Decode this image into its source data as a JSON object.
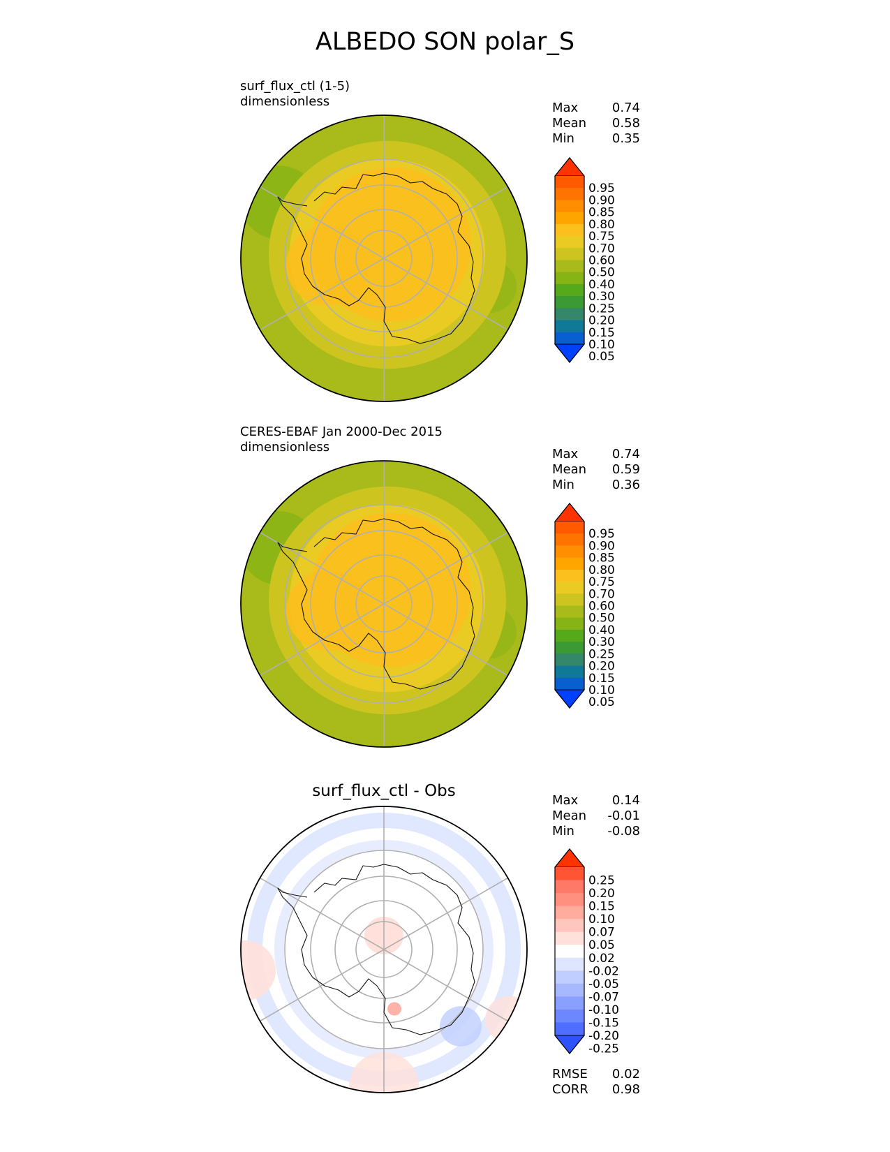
{
  "figure": {
    "title": "ALBEDO SON polar_S"
  },
  "chart_data": [
    {
      "type": "heatmap",
      "projection": "south-polar-stereographic",
      "title": "surf_flux_ctl (1-5)",
      "units": "dimensionless",
      "stats": [
        {
          "label": "Max",
          "value": "0.74"
        },
        {
          "label": "Mean",
          "value": "0.58"
        },
        {
          "label": "Min",
          "value": "0.35"
        }
      ],
      "colorbar": {
        "ticks": [
          "0.95",
          "0.90",
          "0.85",
          "0.80",
          "0.75",
          "0.70",
          "0.60",
          "0.50",
          "0.40",
          "0.30",
          "0.25",
          "0.20",
          "0.15",
          "0.10",
          "0.05"
        ],
        "colors": [
          "#ff3300",
          "#ff5a00",
          "#ff7400",
          "#ff8e00",
          "#ffa500",
          "#fbbf1e",
          "#e9cb24",
          "#cdc41f",
          "#a8bb1a",
          "#86b316",
          "#56a91a",
          "#3c9a35",
          "#34876a",
          "#107998",
          "#0a5fd0",
          "#0040ff"
        ],
        "extend": "both"
      }
    },
    {
      "type": "heatmap",
      "projection": "south-polar-stereographic",
      "title": "CERES-EBAF Jan 2000-Dec 2015",
      "units": "dimensionless",
      "stats": [
        {
          "label": "Max",
          "value": "0.74"
        },
        {
          "label": "Mean",
          "value": "0.59"
        },
        {
          "label": "Min",
          "value": "0.36"
        }
      ],
      "colorbar": {
        "ticks": [
          "0.95",
          "0.90",
          "0.85",
          "0.80",
          "0.75",
          "0.70",
          "0.60",
          "0.50",
          "0.40",
          "0.30",
          "0.25",
          "0.20",
          "0.15",
          "0.10",
          "0.05"
        ],
        "colors": [
          "#ff3300",
          "#ff5a00",
          "#ff7400",
          "#ff8e00",
          "#ffa500",
          "#fbbf1e",
          "#e9cb24",
          "#cdc41f",
          "#a8bb1a",
          "#86b316",
          "#56a91a",
          "#3c9a35",
          "#34876a",
          "#107998",
          "#0a5fd0",
          "#0040ff"
        ],
        "extend": "both"
      }
    },
    {
      "type": "heatmap",
      "projection": "south-polar-stereographic",
      "title": "surf_flux_ctl - Obs",
      "stats": [
        {
          "label": "Max",
          "value": "0.14"
        },
        {
          "label": "Mean",
          "value": "-0.01"
        },
        {
          "label": "Min",
          "value": "-0.08"
        }
      ],
      "extra_stats": [
        {
          "label": "RMSE",
          "value": "0.02"
        },
        {
          "label": "CORR",
          "value": "0.98"
        }
      ],
      "colorbar": {
        "ticks": [
          "0.25",
          "0.20",
          "0.15",
          "0.10",
          "0.07",
          "0.05",
          "0.02",
          "-0.02",
          "-0.05",
          "-0.07",
          "-0.10",
          "-0.15",
          "-0.20",
          "-0.25"
        ],
        "colors": [
          "#ff3300",
          "#ff5533",
          "#ff7a66",
          "#ff9080",
          "#ffab9e",
          "#ffc6bd",
          "#ffe0da",
          "#ffffff",
          "#dde5ff",
          "#c0ceff",
          "#a7b8ff",
          "#8aa0ff",
          "#6d88ff",
          "#4f6eff",
          "#2f52ff"
        ],
        "extend": "both"
      }
    }
  ]
}
